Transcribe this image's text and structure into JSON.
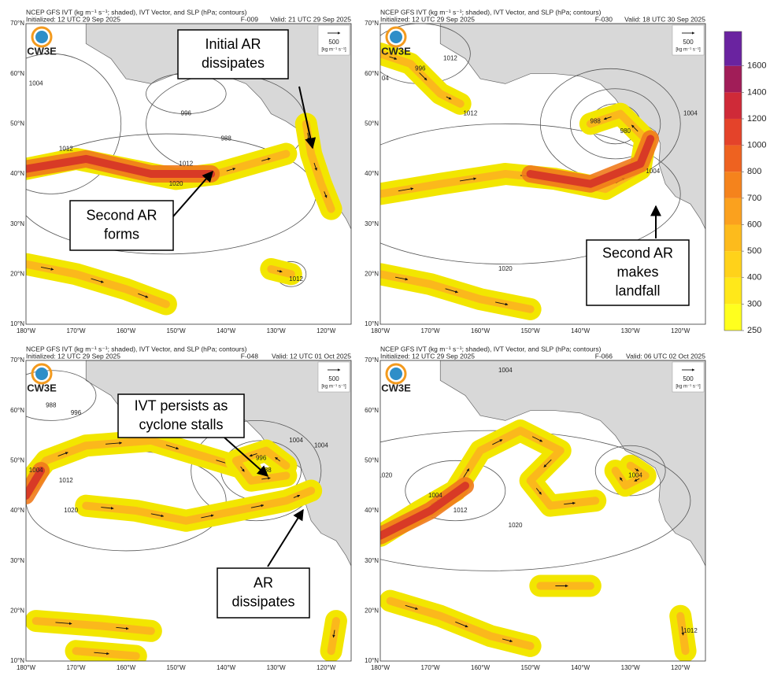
{
  "panels": [
    {
      "header": "NCEP GFS IVT (kg m⁻¹ s⁻¹; shaded), IVT Vector, and SLP (hPa; contours)",
      "initialized": "Initialized: 12 UTC 29 Sep 2025",
      "forecast": "F-009",
      "valid": "Valid: 21 UTC 29 Sep 2025",
      "logo": "CW3E",
      "vector_scale": "500",
      "vector_units": "[kg m⁻¹ s⁻¹]",
      "lat_labels": [
        "70°N",
        "60°N",
        "50°N",
        "40°N",
        "30°N",
        "20°N",
        "10°N"
      ],
      "lon_labels": [
        "180°W",
        "170°W",
        "160°W",
        "150°W",
        "140°W",
        "130°W",
        "120°W"
      ],
      "contour_labels": [
        1004,
        996,
        988,
        1012,
        1012,
        1020,
        1012
      ],
      "annotations": [
        {
          "lines": [
            "Initial AR",
            "dissipates"
          ]
        },
        {
          "lines": [
            "Second AR",
            "forms"
          ]
        }
      ]
    },
    {
      "header": "NCEP GFS IVT (kg m⁻¹ s⁻¹; shaded), IVT Vector, and SLP (hPa; contours)",
      "initialized": "Initialized: 12 UTC 29 Sep 2025",
      "forecast": "F-030",
      "valid": "Valid: 18 UTC 30 Sep 2025",
      "logo": "CW3E",
      "vector_scale": "500",
      "vector_units": "[kg m⁻¹ s⁻¹]",
      "lat_labels": [
        "70°N",
        "60°N",
        "50°N",
        "40°N",
        "30°N",
        "20°N",
        "10°N"
      ],
      "lon_labels": [
        "180°W",
        "170°W",
        "160°W",
        "150°W",
        "140°W",
        "130°W",
        "120°W"
      ],
      "contour_labels": [
        "04",
        1012,
        996,
        1012,
        1004,
        988,
        980,
        1004,
        1020
      ],
      "annotations": [
        {
          "lines": [
            "Second AR",
            "makes",
            "landfall"
          ]
        }
      ]
    },
    {
      "header": "NCEP GFS IVT (kg m⁻¹ s⁻¹; shaded), IVT Vector, and SLP (hPa; contours)",
      "initialized": "Initialized: 12 UTC 29 Sep 2025",
      "forecast": "F-048",
      "valid": "Valid: 12 UTC 01 Oct 2025",
      "logo": "CW3E",
      "vector_scale": "500",
      "vector_units": "[kg m⁻¹ s⁻¹]",
      "lat_labels": [
        "70°N",
        "60°N",
        "50°N",
        "40°N",
        "30°N",
        "20°N",
        "10°N"
      ],
      "lon_labels": [
        "180°W",
        "170°W",
        "160°W",
        "150°W",
        "140°W",
        "130°W",
        "120°W"
      ],
      "contour_labels": [
        988,
        996,
        1004,
        1004,
        1012,
        996,
        988,
        1004,
        1004,
        1020
      ],
      "annotations": [
        {
          "lines": [
            "IVT persists as",
            "cyclone stalls"
          ]
        },
        {
          "lines": [
            "AR",
            "dissipates"
          ]
        }
      ]
    },
    {
      "header": "NCEP GFS IVT (kg m⁻¹ s⁻¹; shaded), IVT Vector, and SLP (hPa; contours)",
      "initialized": "Initialized: 12 UTC 29 Sep 2025",
      "forecast": "F-066",
      "valid": "Valid: 06 UTC 02 Oct 2025",
      "logo": "CW3E",
      "vector_scale": "500",
      "vector_units": "[kg m⁻¹ s⁻¹]",
      "lat_labels": [
        "70°N",
        "60°N",
        "50°N",
        "40°N",
        "30°N",
        "20°N",
        "10°N"
      ],
      "lon_labels": [
        "180°W",
        "170°W",
        "160°W",
        "150°W",
        "140°W",
        "130°W",
        "120°W"
      ],
      "contour_labels": [
        1004,
        1020,
        1004,
        1012,
        1020,
        1004,
        1012
      ],
      "annotations": []
    }
  ],
  "colorbar": {
    "ticks": [
      250,
      300,
      400,
      500,
      600,
      700,
      800,
      1000,
      1200,
      1400,
      1600
    ],
    "colors": [
      "#ffff1e",
      "#ffe81a",
      "#ffd21a",
      "#fdbb1c",
      "#fba11e",
      "#f5831c",
      "#ee6220",
      "#e4432a",
      "#cf2a38",
      "#a11d58",
      "#6a23a0"
    ]
  }
}
